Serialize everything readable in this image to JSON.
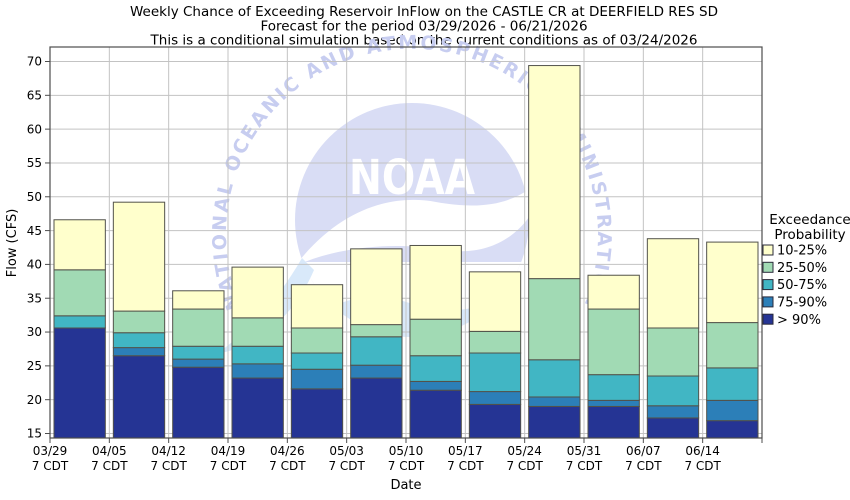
{
  "title": {
    "line1": "Weekly Chance of Exceeding Reservoir InFlow on the CASTLE CR at DEERFIELD RES SD",
    "line2": "Forecast for the period 03/29/2026 - 06/21/2026",
    "line3": "This is a conditional simulation based on the current conditions as of 03/24/2026"
  },
  "watermark": {
    "name": "NOAA",
    "arc_text": "NATIONAL OCEANIC AND ATMOSPHERIC ADMINISTRATION"
  },
  "legend": {
    "title_line1": "Exceedance",
    "title_line2": "Probability"
  },
  "colors": {
    "background": "#ffffff",
    "frame": "#4d4d4d",
    "gridline": "#c3c3c3",
    "bar_border": "#52524a",
    "text": "#000000",
    "watermark_circle": "#d9ddf5",
    "watermark_arc_text": "#c7cdf0",
    "watermark_wave": "#d9e9fa"
  },
  "chart_data": {
    "type": "bar",
    "stacked": true,
    "title": "Weekly Chance of Exceeding Reservoir InFlow on the CASTLE CR at DEERFIELD RES SD",
    "xlabel": "Date",
    "ylabel": "Flow (CFS)",
    "units": "CFS",
    "ylim": [
      15,
      72
    ],
    "ybase": 15,
    "yticks": [
      15,
      20,
      25,
      30,
      35,
      40,
      45,
      50,
      55,
      60,
      65,
      70
    ],
    "grid": true,
    "legend_position": "right",
    "legend_title": "Exceedance Probability",
    "categories": [
      "03/29",
      "04/05",
      "04/12",
      "04/19",
      "04/26",
      "05/03",
      "05/10",
      "05/17",
      "05/24",
      "05/31",
      "06/07",
      "06/14"
    ],
    "category_sublabel": "7 CDT",
    "series_note": "tops are cumulative stack-top values in CFS for each weekly bar",
    "series": [
      {
        "name": "10-25%",
        "color": "#FFFFCC",
        "tops": [
          46.6,
          49.2,
          36.1,
          39.6,
          37.0,
          42.3,
          42.8,
          38.9,
          69.4,
          38.4,
          43.8,
          43.3
        ]
      },
      {
        "name": "25-50%",
        "color": "#A1DAB4",
        "tops": [
          39.2,
          33.1,
          33.4,
          32.1,
          30.6,
          31.1,
          31.9,
          30.1,
          37.9,
          33.4,
          30.6,
          31.4
        ]
      },
      {
        "name": "50-75%",
        "color": "#41B6C4",
        "tops": [
          32.4,
          29.9,
          27.9,
          27.9,
          26.9,
          29.3,
          26.5,
          26.9,
          25.9,
          23.7,
          23.5,
          24.7
        ]
      },
      {
        "name": "75-90%",
        "color": "#2C7FB8",
        "tops": [
          30.6,
          27.7,
          26.0,
          25.3,
          24.5,
          25.1,
          22.7,
          21.2,
          20.4,
          19.9,
          19.1,
          19.9
        ]
      },
      {
        "name": "> 90%",
        "color": "#253494",
        "tops": [
          30.6,
          26.5,
          24.8,
          23.2,
          21.6,
          23.2,
          21.4,
          19.3,
          19.0,
          19.0,
          17.3,
          16.9
        ]
      }
    ]
  }
}
